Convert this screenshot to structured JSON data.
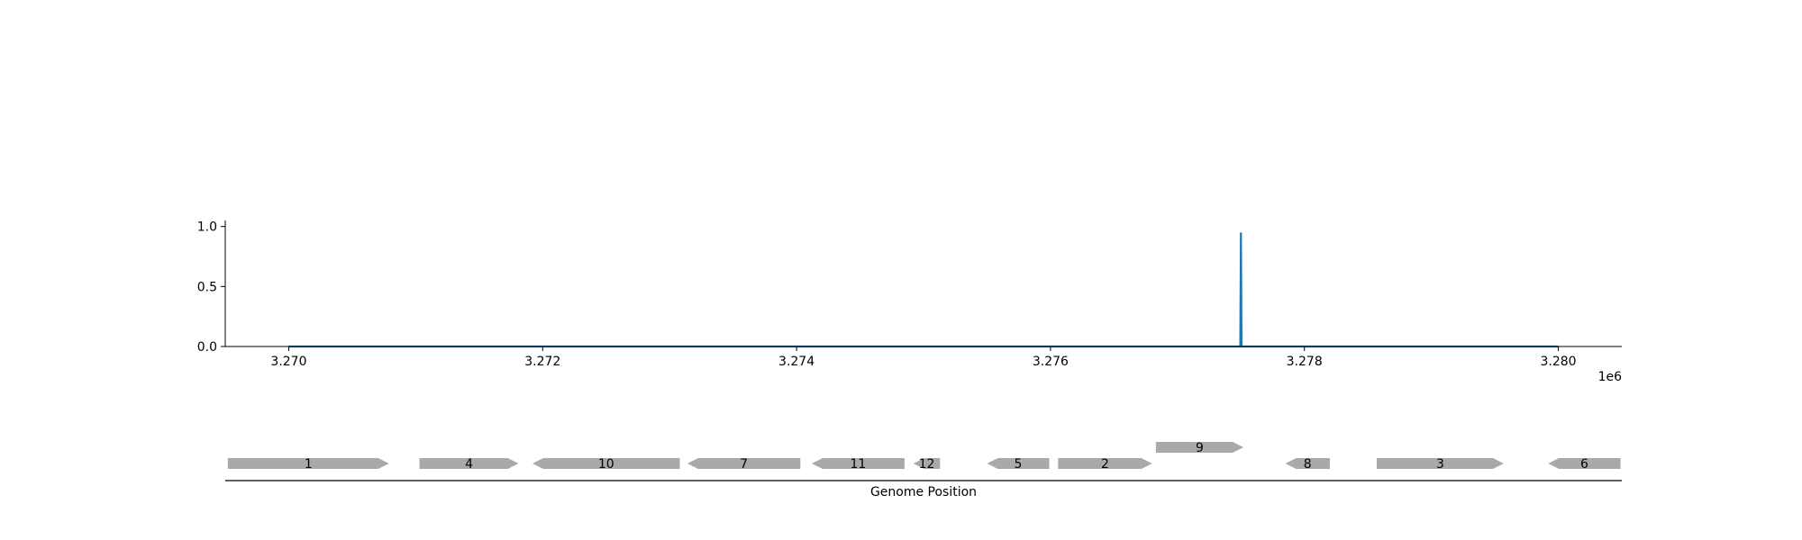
{
  "chart_data": [
    {
      "type": "line",
      "title": "",
      "xlabel": "",
      "ylabel": "",
      "x_offset_label": "1e6",
      "xlim": [
        3269500,
        3280500
      ],
      "ylim": [
        0,
        1.05
      ],
      "xticks": [
        3270000,
        3272000,
        3274000,
        3276000,
        3278000,
        3280000
      ],
      "xtick_labels": [
        "3.270",
        "3.272",
        "3.274",
        "3.276",
        "3.278",
        "3.280"
      ],
      "yticks": [
        0.0,
        0.5,
        1.0
      ],
      "ytick_labels": [
        "0.0",
        "0.5",
        "1.0"
      ],
      "grid": false,
      "line_color": "#1f77b4",
      "series": [
        {
          "x": [
            3270000,
            3277495,
            3277500,
            3277505,
            3280000
          ],
          "y": [
            0,
            0,
            0.95,
            0,
            0
          ]
        }
      ]
    },
    {
      "type": "gene-track",
      "xlabel": "Genome Position",
      "feature_color": "#a9a9a9",
      "features": [
        {
          "label": "1",
          "start": 3269520,
          "end": 3270790,
          "strand": 1,
          "row": 0
        },
        {
          "label": "4",
          "start": 3271030,
          "end": 3271810,
          "strand": 1,
          "row": 0
        },
        {
          "label": "10",
          "start": 3271920,
          "end": 3273080,
          "strand": -1,
          "row": 0
        },
        {
          "label": "7",
          "start": 3273140,
          "end": 3274030,
          "strand": -1,
          "row": 0
        },
        {
          "label": "11",
          "start": 3274120,
          "end": 3274850,
          "strand": -1,
          "row": 0
        },
        {
          "label": "12",
          "start": 3274920,
          "end": 3275130,
          "strand": -1,
          "row": 0
        },
        {
          "label": "5",
          "start": 3275500,
          "end": 3275990,
          "strand": -1,
          "row": 0
        },
        {
          "label": "2",
          "start": 3276060,
          "end": 3276800,
          "strand": 1,
          "row": 0
        },
        {
          "label": "9",
          "start": 3276830,
          "end": 3277520,
          "strand": 1,
          "row": 1
        },
        {
          "label": "8",
          "start": 3277850,
          "end": 3278200,
          "strand": -1,
          "row": 0
        },
        {
          "label": "3",
          "start": 3278570,
          "end": 3279570,
          "strand": 1,
          "row": 0
        },
        {
          "label": "6",
          "start": 3279920,
          "end": 3280490,
          "strand": -1,
          "row": 0
        }
      ]
    }
  ]
}
